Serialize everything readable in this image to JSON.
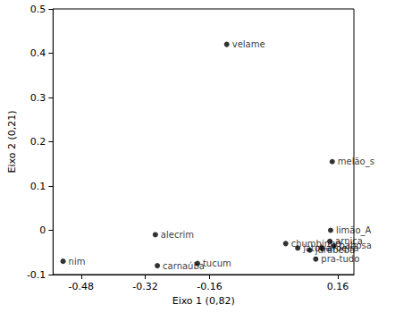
{
  "chart_data": {
    "type": "scatter",
    "xlabel": "Eixo 1 (0,82)",
    "ylabel": "Eixo 2 (0,21)",
    "labels": [
      "velame",
      "melão_s",
      "limão_A",
      "pra-tudo",
      "alecrim",
      "nim",
      "carnaúba",
      "tucum",
      "chumbinho",
      "jatobá",
      "jurubeba",
      "aroeira",
      "arnica",
      "babosa"
    ],
    "x": [
      -0.117,
      0.146,
      0.142,
      0.105,
      -0.295,
      -0.525,
      -0.29,
      -0.19,
      0.03,
      0.06,
      0.09,
      0.12,
      0.14,
      0.15
    ],
    "values": [
      0.42,
      0.155,
      0.0,
      -0.065,
      -0.01,
      -0.07,
      -0.08,
      -0.075,
      -0.03,
      -0.04,
      -0.045,
      -0.04,
      -0.025,
      -0.035
    ],
    "color": "#000000",
    "marker": "circle",
    "xlim": [
      -0.55,
      0.2
    ],
    "ylim": [
      -0.1,
      0.5
    ],
    "xticks": [
      -0.48,
      -0.32,
      -0.16,
      0.16
    ],
    "yticks": [
      -0.1,
      0,
      0.1,
      0.2,
      0.3,
      0.4,
      0.5
    ],
    "grid": false
  }
}
